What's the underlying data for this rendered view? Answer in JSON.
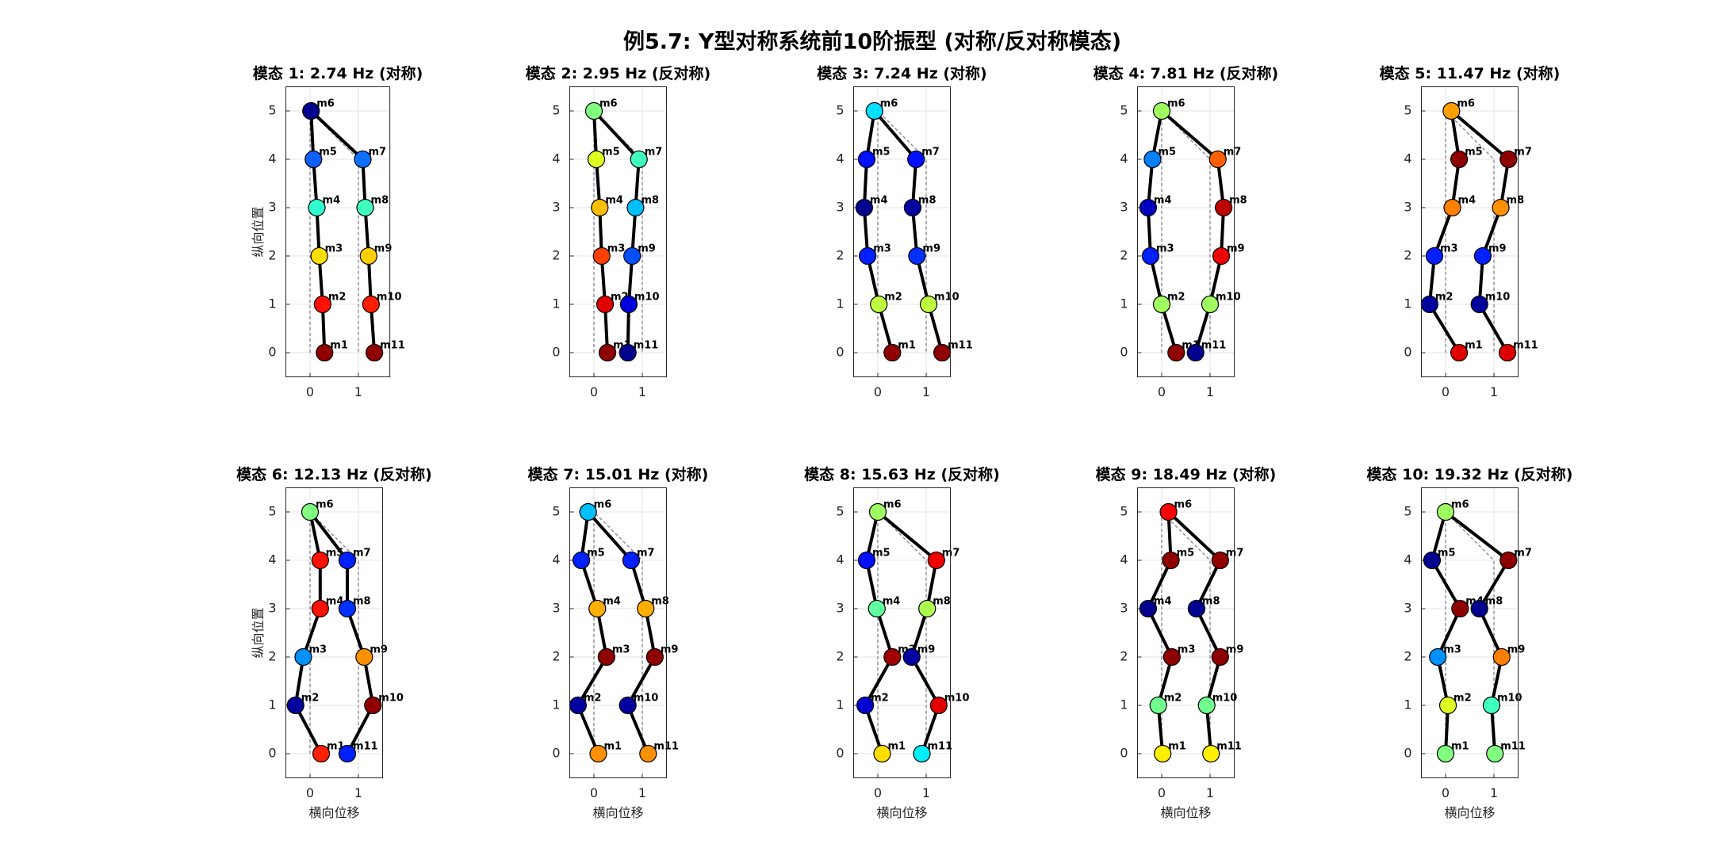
{
  "title": "例5.7: Y型对称系统前10阶振型 (对称/反对称模态)",
  "undeformed_x": [
    0,
    0,
    0,
    0,
    0,
    0,
    1,
    1,
    1,
    1,
    1
  ],
  "chart_data": [
    {
      "type": "scatter",
      "title": "模态 1: 2.74 Hz (对称)",
      "ylabel": "纵向位置",
      "labels": [
        "m1",
        "m2",
        "m3",
        "m4",
        "m5",
        "m6",
        "m7",
        "m8",
        "m9",
        "m10",
        "m11"
      ],
      "x": [
        0.3,
        0.26,
        0.19,
        0.14,
        0.07,
        0.02,
        1.09,
        1.14,
        1.21,
        1.26,
        1.33
      ],
      "y": [
        0,
        1,
        2,
        3,
        4,
        5,
        4,
        3,
        2,
        1,
        0
      ],
      "colors": [
        "#8f0000",
        "#ff1000",
        "#ffdf00",
        "#30ffcf",
        "#0f5fff",
        "#00008f",
        "#0f6fff",
        "#40ffbf",
        "#ffcf00",
        "#ff1f00",
        "#8f0000"
      ],
      "xlim": [
        -0.5,
        1.65
      ],
      "ylim": [
        -0.5,
        5.5
      ],
      "xticks": [
        0,
        1
      ],
      "yticks": [
        0,
        1,
        2,
        3,
        4,
        5
      ],
      "grid": true
    },
    {
      "type": "scatter",
      "title": "模态 2: 2.95 Hz (反对称)",
      "labels": [
        "m1",
        "m2",
        "m3",
        "m4",
        "m5",
        "m6",
        "m7",
        "m8",
        "m9",
        "m10",
        "m11"
      ],
      "x": [
        0.28,
        0.23,
        0.16,
        0.12,
        0.05,
        0,
        0.93,
        0.86,
        0.79,
        0.72,
        0.7
      ],
      "y": [
        0,
        1,
        2,
        3,
        4,
        5,
        4,
        3,
        2,
        1,
        0
      ],
      "colors": [
        "#8f0000",
        "#df0000",
        "#ff4000",
        "#ffbf00",
        "#dfff20",
        "#80ff80",
        "#40ffbf",
        "#00bfff",
        "#0050ff",
        "#0000df",
        "#00008f"
      ],
      "xlim": [
        -0.5,
        1.5
      ],
      "ylim": [
        -0.5,
        5.5
      ],
      "xticks": [
        0,
        1
      ],
      "yticks": [
        0,
        1,
        2,
        3,
        4,
        5
      ],
      "grid": true
    },
    {
      "type": "scatter",
      "title": "模态 3: 7.24 Hz (对称)",
      "labels": [
        "m1",
        "m2",
        "m3",
        "m4",
        "m5",
        "m6",
        "m7",
        "m8",
        "m9",
        "m10",
        "m11"
      ],
      "x": [
        0.3,
        0.02,
        -0.21,
        -0.28,
        -0.23,
        -0.07,
        0.79,
        0.72,
        0.81,
        1.05,
        1.33
      ],
      "y": [
        0,
        1,
        2,
        3,
        4,
        5,
        4,
        3,
        2,
        1,
        0
      ],
      "colors": [
        "#8f0000",
        "#bfff40",
        "#0020ff",
        "#00008f",
        "#0010ff",
        "#00dfff",
        "#0010ff",
        "#00009f",
        "#0030ff",
        "#bfff40",
        "#8f0000"
      ],
      "xlim": [
        -0.5,
        1.5
      ],
      "ylim": [
        -0.5,
        5.5
      ],
      "xticks": [
        0,
        1
      ],
      "yticks": [
        0,
        1,
        2,
        3,
        4,
        5
      ],
      "grid": true
    },
    {
      "type": "scatter",
      "title": "模态 4: 7.81 Hz (反对称)",
      "labels": [
        "m1",
        "m2",
        "m3",
        "m4",
        "m5",
        "m6",
        "m7",
        "m8",
        "m9",
        "m10",
        "m11"
      ],
      "x": [
        0.3,
        0,
        -0.23,
        -0.28,
        -0.19,
        0,
        1.16,
        1.28,
        1.23,
        1,
        0.7
      ],
      "y": [
        0,
        1,
        2,
        3,
        4,
        5,
        4,
        3,
        2,
        1,
        0
      ],
      "colors": [
        "#8f0000",
        "#9fff60",
        "#0020ff",
        "#0000bf",
        "#0080ff",
        "#9fff60",
        "#ff6000",
        "#bf0000",
        "#ef0000",
        "#9fff60",
        "#00008f"
      ],
      "xlim": [
        -0.5,
        1.5
      ],
      "ylim": [
        -0.5,
        5.5
      ],
      "xticks": [
        0,
        1
      ],
      "yticks": [
        0,
        1,
        2,
        3,
        4,
        5
      ],
      "grid": true
    },
    {
      "type": "scatter",
      "title": "模态 5: 11.47 Hz (对称)",
      "labels": [
        "m1",
        "m2",
        "m3",
        "m4",
        "m5",
        "m6",
        "m7",
        "m8",
        "m9",
        "m10",
        "m11"
      ],
      "x": [
        0.28,
        -0.33,
        -0.23,
        0.14,
        0.28,
        0.12,
        1.3,
        1.14,
        0.77,
        0.7,
        1.28
      ],
      "y": [
        0,
        1,
        2,
        3,
        4,
        5,
        4,
        3,
        2,
        1,
        0
      ],
      "colors": [
        "#df0000",
        "#00009f",
        "#0020ff",
        "#ff8000",
        "#8f0000",
        "#ff9f00",
        "#8f0000",
        "#ff9000",
        "#0020ff",
        "#00009f",
        "#df0000"
      ],
      "xlim": [
        -0.5,
        1.5
      ],
      "ylim": [
        -0.5,
        5.5
      ],
      "xticks": [
        0,
        1
      ],
      "yticks": [
        0,
        1,
        2,
        3,
        4,
        5
      ],
      "grid": true
    },
    {
      "type": "scatter",
      "title": "模态 6: 12.13 Hz (反对称)",
      "ylabel": "纵向位置",
      "xlabel": "横向位移",
      "labels": [
        "m1",
        "m2",
        "m3",
        "m4",
        "m5",
        "m6",
        "m7",
        "m8",
        "m9",
        "m10",
        "m11"
      ],
      "x": [
        0.23,
        -0.3,
        -0.14,
        0.21,
        0.21,
        0,
        0.77,
        0.77,
        1.12,
        1.3,
        0.77
      ],
      "y": [
        0,
        1,
        2,
        3,
        4,
        5,
        4,
        3,
        2,
        1,
        0
      ],
      "colors": [
        "#ff2000",
        "#00009f",
        "#0090ff",
        "#ff1000",
        "#ff1000",
        "#80ff80",
        "#0020ff",
        "#0030ff",
        "#ff9000",
        "#8f0000",
        "#0020ff"
      ],
      "xlim": [
        -0.5,
        1.5
      ],
      "ylim": [
        -0.5,
        5.5
      ],
      "xticks": [
        0,
        1
      ],
      "yticks": [
        0,
        1,
        2,
        3,
        4,
        5
      ],
      "grid": true
    },
    {
      "type": "scatter",
      "title": "模态 7: 15.01 Hz (对称)",
      "xlabel": "横向位移",
      "labels": [
        "m1",
        "m2",
        "m3",
        "m4",
        "m5",
        "m6",
        "m7",
        "m8",
        "m9",
        "m10",
        "m11"
      ],
      "x": [
        0.09,
        -0.33,
        0.26,
        0.07,
        -0.26,
        -0.12,
        0.77,
        1.07,
        1.26,
        0.7,
        1.12
      ],
      "y": [
        0,
        1,
        2,
        3,
        4,
        5,
        4,
        3,
        2,
        1,
        0
      ],
      "colors": [
        "#ff9000",
        "#00009f",
        "#8f0000",
        "#ffaf00",
        "#0020ff",
        "#00bfff",
        "#0020ff",
        "#ffaf00",
        "#8f0000",
        "#00009f",
        "#ff9000"
      ],
      "xlim": [
        -0.5,
        1.5
      ],
      "ylim": [
        -0.5,
        5.5
      ],
      "xticks": [
        0,
        1
      ],
      "yticks": [
        0,
        1,
        2,
        3,
        4,
        5
      ],
      "grid": true
    },
    {
      "type": "scatter",
      "title": "模态 8: 15.63 Hz (反对称)",
      "xlabel": "横向位移",
      "labels": [
        "m1",
        "m2",
        "m3",
        "m4",
        "m5",
        "m6",
        "m7",
        "m8",
        "m9",
        "m10",
        "m11"
      ],
      "x": [
        0.09,
        -0.26,
        0.3,
        -0.02,
        -0.23,
        0,
        1.21,
        1.02,
        0.7,
        1.26,
        0.91
      ],
      "y": [
        0,
        1,
        2,
        3,
        4,
        5,
        4,
        3,
        2,
        1,
        0
      ],
      "colors": [
        "#ffdf00",
        "#0000cf",
        "#9f0000",
        "#60ff9f",
        "#0010ff",
        "#9fff60",
        "#ef0000",
        "#afff50",
        "#00009f",
        "#df0000",
        "#00efff"
      ],
      "xlim": [
        -0.5,
        1.5
      ],
      "ylim": [
        -0.5,
        5.5
      ],
      "xticks": [
        0,
        1
      ],
      "yticks": [
        0,
        1,
        2,
        3,
        4,
        5
      ],
      "grid": true
    },
    {
      "type": "scatter",
      "title": "模态 9: 18.49 Hz (对称)",
      "xlabel": "横向位移",
      "labels": [
        "m1",
        "m2",
        "m3",
        "m4",
        "m5",
        "m6",
        "m7",
        "m8",
        "m9",
        "m10",
        "m11"
      ],
      "x": [
        0.02,
        -0.07,
        0.21,
        -0.28,
        0.19,
        0.14,
        1.21,
        0.72,
        1.21,
        0.93,
        1.02
      ],
      "y": [
        0,
        1,
        2,
        3,
        4,
        5,
        4,
        3,
        2,
        1,
        0
      ],
      "colors": [
        "#ffef00",
        "#70ff8f",
        "#8f0000",
        "#00008f",
        "#8f0000",
        "#ff0000",
        "#8f0000",
        "#00008f",
        "#8f0000",
        "#70ff8f",
        "#ffef00"
      ],
      "xlim": [
        -0.5,
        1.5
      ],
      "ylim": [
        -0.5,
        5.5
      ],
      "xticks": [
        0,
        1
      ],
      "yticks": [
        0,
        1,
        2,
        3,
        4,
        5
      ],
      "grid": true
    },
    {
      "type": "scatter",
      "title": "模态 10: 19.32 Hz (反对称)",
      "xlabel": "横向位移",
      "labels": [
        "m1",
        "m2",
        "m3",
        "m4",
        "m5",
        "m6",
        "m7",
        "m8",
        "m9",
        "m10",
        "m11"
      ],
      "x": [
        0,
        0.05,
        -0.16,
        0.3,
        -0.28,
        0,
        1.3,
        0.7,
        1.16,
        0.95,
        1.02
      ],
      "y": [
        0,
        1,
        2,
        3,
        4,
        5,
        4,
        3,
        2,
        1,
        0
      ],
      "colors": [
        "#80ff80",
        "#dfff20",
        "#0090ff",
        "#8f0000",
        "#00008f",
        "#9fff60",
        "#8f0000",
        "#00008f",
        "#ff8000",
        "#40ffbf",
        "#80ff80"
      ],
      "xlim": [
        -0.5,
        1.5
      ],
      "ylim": [
        -0.5,
        5.5
      ],
      "xticks": [
        0,
        1
      ],
      "yticks": [
        0,
        1,
        2,
        3,
        4,
        5
      ],
      "grid": true
    }
  ]
}
